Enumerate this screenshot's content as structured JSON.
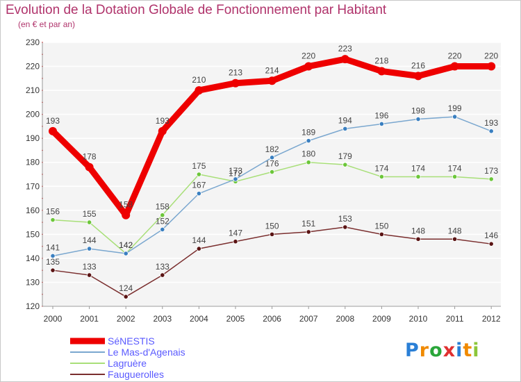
{
  "chart_data": {
    "type": "line",
    "title": "Evolution de la Dotation Globale de Fonctionnement par Habitant",
    "subtitle": "(en € et par an)",
    "x": [
      "2000",
      "2001",
      "2002",
      "2003",
      "2004",
      "2005",
      "2006",
      "2007",
      "2008",
      "2009",
      "2010",
      "2011",
      "2012"
    ],
    "yticks": [
      "120",
      "130",
      "140",
      "150",
      "160",
      "170",
      "180",
      "190",
      "200",
      "210",
      "220",
      "230"
    ],
    "ylim": [
      120,
      230
    ],
    "grid": "horizontal",
    "legend_position": "bottom-left",
    "series": [
      {
        "name": "SéNESTIS",
        "color": "#ee0000",
        "values": [
          193,
          178,
          158,
          193,
          210,
          213,
          214,
          220,
          223,
          218,
          216,
          220,
          220
        ],
        "labels": [
          "193",
          "178",
          "158",
          "193",
          "210",
          "213",
          "214",
          "220",
          "223",
          "218",
          "216",
          "220",
          "220"
        ]
      },
      {
        "name": "Le Mas-d'Agenais",
        "color": "#7aa7cf",
        "marker": "#3a7fc0",
        "values": [
          141,
          144,
          142,
          152,
          167,
          173,
          182,
          189,
          194,
          196,
          198,
          199,
          193
        ],
        "labels": [
          "141",
          "144",
          "142",
          "152",
          "167",
          "173",
          "182",
          "189",
          "194",
          "196",
          "198",
          "199",
          "193"
        ]
      },
      {
        "name": "Lagruère",
        "color": "#a8df78",
        "marker": "#6cc63a",
        "values": [
          156,
          155,
          142,
          158,
          175,
          172,
          176,
          180,
          179,
          174,
          174,
          174,
          173
        ],
        "labels": [
          "156",
          "155",
          "142",
          "158",
          "175",
          "172",
          "176",
          "180",
          "179",
          "174",
          "174",
          "174",
          "173"
        ]
      },
      {
        "name": "Fauguerolles",
        "color": "#7a2e2e",
        "marker": "#5a1414",
        "values": [
          135,
          133,
          124,
          133,
          144,
          147,
          150,
          151,
          153,
          150,
          148,
          148,
          146
        ],
        "labels": [
          "135",
          "133",
          "124",
          "133",
          "144",
          "147",
          "150",
          "151",
          "153",
          "150",
          "148",
          "148",
          "146"
        ]
      }
    ]
  },
  "logo": {
    "letters": [
      "P",
      "r",
      "o",
      "x",
      "i",
      "t",
      "i"
    ],
    "colors": [
      "#2a7fd6",
      "#f08a00",
      "#2aa63a",
      "#e03030",
      "#2a7fd6",
      "#f08a00",
      "#8cc63a"
    ]
  }
}
